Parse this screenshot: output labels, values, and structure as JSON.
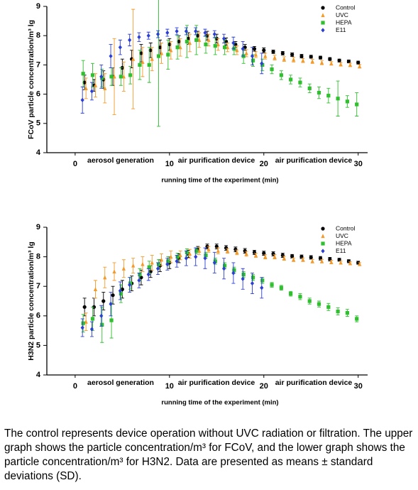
{
  "chart_data": [
    {
      "type": "scatter",
      "y_label": "FCoV particle concentration/m³ lg",
      "x_label": "running time of the experiment (min)",
      "annotations": [
        "aerosol generation",
        "air purification device",
        "air purification device"
      ],
      "legend": "upper right",
      "xlim": [
        -3,
        31
      ],
      "ylim": [
        4,
        9
      ],
      "xticks": [
        0,
        10,
        20,
        30
      ],
      "yticks": [
        4,
        5,
        6,
        7,
        8,
        9
      ],
      "x": [
        1,
        2,
        3,
        4,
        5,
        6,
        7,
        8,
        9,
        10,
        11,
        12,
        13,
        14,
        15,
        16,
        17,
        18,
        19,
        20,
        21,
        22,
        23,
        24,
        25,
        26,
        27,
        28,
        29,
        30
      ],
      "series": [
        {
          "name": "Control",
          "color": "#000000",
          "marker": "circle",
          "values": [
            6.4,
            6.3,
            6.5,
            6.6,
            6.9,
            7.2,
            7.4,
            7.5,
            7.6,
            7.7,
            7.8,
            7.9,
            8.0,
            8.0,
            7.9,
            7.8,
            7.7,
            7.6,
            7.55,
            7.5,
            7.45,
            7.4,
            7.35,
            7.3,
            7.28,
            7.25,
            7.2,
            7.15,
            7.12,
            7.08
          ],
          "errors": [
            0.25,
            0.2,
            0.3,
            0.3,
            0.3,
            0.3,
            0.3,
            0.25,
            0.25,
            0.2,
            0.2,
            0.2,
            0.15,
            0.15,
            0.15,
            0.12,
            0.1,
            0.1,
            0.08,
            0.08,
            0.06,
            0.06,
            0.06,
            0.06,
            0.05,
            0.05,
            0.05,
            0.05,
            0.05,
            0.05
          ]
        },
        {
          "name": "UVC",
          "color": "#f39a2b",
          "marker": "triangle",
          "values": [
            6.2,
            6.3,
            6.2,
            6.6,
            6.6,
            7.2,
            7.1,
            7.2,
            7.4,
            7.5,
            7.6,
            7.75,
            7.85,
            7.85,
            7.7,
            7.6,
            7.5,
            7.4,
            7.35,
            7.3,
            7.25,
            7.2,
            7.18,
            7.15,
            7.12,
            7.08,
            7.05,
            7.02,
            7.0,
            6.95
          ],
          "errors": [
            0.35,
            0.4,
            0.5,
            1.3,
            0.5,
            1.7,
            0.5,
            0.4,
            0.35,
            0.3,
            0.3,
            0.3,
            0.25,
            0.2,
            0.2,
            0.15,
            0.15,
            0.12,
            0.1,
            0.1,
            0.08,
            0.08,
            0.08,
            0.07,
            0.07,
            0.07,
            0.06,
            0.06,
            0.06,
            0.06
          ]
        },
        {
          "name": "HEPA",
          "color": "#2fbf2f",
          "marker": "square",
          "values": [
            6.7,
            6.65,
            6.55,
            6.6,
            6.6,
            6.65,
            7.0,
            7.0,
            7.3,
            7.35,
            7.6,
            7.8,
            7.85,
            7.7,
            7.65,
            7.6,
            7.55,
            7.3,
            7.15,
            7.0,
            6.85,
            6.65,
            6.5,
            6.4,
            6.2,
            6.05,
            5.95,
            5.85,
            5.75,
            5.65
          ],
          "errors": [
            0.45,
            0.4,
            0.3,
            0.3,
            0.3,
            0.3,
            0.5,
            0.6,
            2.4,
            0.5,
            0.4,
            0.55,
            0.5,
            0.3,
            0.3,
            0.25,
            0.2,
            0.25,
            0.2,
            0.2,
            0.15,
            0.15,
            0.15,
            0.15,
            0.15,
            0.2,
            0.25,
            0.6,
            0.2,
            0.4
          ]
        },
        {
          "name": "E11",
          "color": "#2b3fd4",
          "marker": "diamond",
          "values": [
            5.8,
            6.1,
            6.6,
            7.3,
            7.6,
            7.85,
            7.95,
            8.0,
            8.05,
            8.1,
            8.15,
            8.15,
            8.15,
            8.1,
            8.05,
            7.9,
            7.75,
            7.55,
            7.3,
            7.05,
            null,
            null,
            null,
            null,
            null,
            null,
            null,
            null,
            null,
            null
          ],
          "errors": [
            0.45,
            0.3,
            0.4,
            0.4,
            0.25,
            0.2,
            0.15,
            0.12,
            0.12,
            0.12,
            0.12,
            0.12,
            0.12,
            0.12,
            0.12,
            0.15,
            0.2,
            0.25,
            0.3,
            0.35,
            null,
            null,
            null,
            null,
            null,
            null,
            null,
            null,
            null,
            null
          ]
        }
      ]
    },
    {
      "type": "scatter",
      "y_label": "H3N2 particle concentration/m³ lg",
      "x_label": "running time of the experiment (min)",
      "annotations": [
        "aerosol generation",
        "air purification device",
        "air purification device"
      ],
      "legend": "upper right",
      "xlim": [
        -3,
        31
      ],
      "ylim": [
        4,
        9
      ],
      "xticks": [
        0,
        10,
        20,
        30
      ],
      "yticks": [
        4,
        5,
        6,
        7,
        8,
        9
      ],
      "x": [
        1,
        2,
        3,
        4,
        5,
        6,
        7,
        8,
        9,
        10,
        11,
        12,
        13,
        14,
        15,
        16,
        17,
        18,
        19,
        20,
        21,
        22,
        23,
        24,
        25,
        26,
        27,
        28,
        29,
        30
      ],
      "series": [
        {
          "name": "Control",
          "color": "#000000",
          "marker": "circle",
          "values": [
            6.3,
            6.3,
            6.5,
            6.7,
            6.9,
            7.1,
            7.3,
            7.5,
            7.7,
            7.8,
            7.95,
            8.1,
            8.25,
            8.35,
            8.35,
            8.3,
            8.25,
            8.2,
            8.15,
            8.12,
            8.1,
            8.05,
            8.02,
            8.0,
            7.98,
            7.95,
            7.92,
            7.9,
            7.85,
            7.8
          ],
          "errors": [
            0.3,
            0.3,
            0.3,
            0.3,
            0.3,
            0.25,
            0.25,
            0.2,
            0.2,
            0.2,
            0.15,
            0.12,
            0.1,
            0.08,
            0.08,
            0.08,
            0.08,
            0.08,
            0.07,
            0.07,
            0.07,
            0.07,
            0.06,
            0.06,
            0.06,
            0.06,
            0.06,
            0.05,
            0.05,
            0.05
          ]
        },
        {
          "name": "UVC",
          "color": "#f39a2b",
          "marker": "triangle",
          "values": [
            5.8,
            6.9,
            7.3,
            7.5,
            7.6,
            7.7,
            7.75,
            7.8,
            7.9,
            8.0,
            8.05,
            8.1,
            8.2,
            8.25,
            8.2,
            8.2,
            8.15,
            8.1,
            8.05,
            8.0,
            8.0,
            7.95,
            7.9,
            7.9,
            7.85,
            7.85,
            7.82,
            7.8,
            7.78,
            7.75
          ],
          "errors": [
            0.3,
            0.3,
            0.35,
            0.3,
            0.3,
            0.25,
            0.25,
            0.25,
            0.2,
            0.2,
            0.15,
            0.15,
            0.12,
            0.1,
            0.1,
            0.08,
            0.08,
            0.08,
            0.07,
            0.07,
            0.07,
            0.07,
            0.06,
            0.06,
            0.06,
            0.06,
            0.06,
            0.05,
            0.05,
            0.05
          ]
        },
        {
          "name": "HEPA",
          "color": "#2fbf2f",
          "marker": "square",
          "values": [
            5.75,
            5.9,
            5.7,
            5.85,
            6.75,
            7.1,
            7.4,
            7.65,
            7.75,
            7.85,
            8.0,
            8.15,
            8.2,
            8.05,
            7.85,
            7.7,
            7.55,
            7.4,
            7.3,
            7.2,
            7.05,
            6.95,
            6.75,
            6.65,
            6.5,
            6.4,
            6.3,
            6.15,
            6.1,
            5.9
          ],
          "errors": [
            0.3,
            0.4,
            0.6,
            0.6,
            0.3,
            0.2,
            0.2,
            0.2,
            0.15,
            0.15,
            0.12,
            0.12,
            0.1,
            0.1,
            0.1,
            0.1,
            0.1,
            0.1,
            0.1,
            0.1,
            0.08,
            0.08,
            0.08,
            0.1,
            0.1,
            0.1,
            0.12,
            0.12,
            0.12,
            0.1
          ]
        },
        {
          "name": "E11",
          "color": "#2b3fd4",
          "marker": "diamond",
          "values": [
            5.6,
            5.55,
            6.0,
            6.4,
            6.85,
            7.05,
            7.2,
            7.4,
            7.6,
            7.75,
            7.85,
            7.95,
            8.0,
            7.95,
            7.8,
            7.6,
            7.45,
            7.25,
            7.1,
            6.95,
            null,
            null,
            null,
            null,
            null,
            null,
            null,
            null,
            null,
            null
          ],
          "errors": [
            0.3,
            0.25,
            0.35,
            0.4,
            0.3,
            0.25,
            0.25,
            0.2,
            0.2,
            0.2,
            0.2,
            0.25,
            0.3,
            0.35,
            0.35,
            0.35,
            0.35,
            0.35,
            0.35,
            0.35,
            null,
            null,
            null,
            null,
            null,
            null,
            null,
            null,
            null,
            null
          ]
        }
      ]
    }
  ],
  "caption": "The control represents device operation without UVC radiation or filtration. The upper graph shows the particle concentration/m³ for FCoV, and the lower graph shows the particle concentration/m³ for H3N2. Data are presented as means ± standard deviations (SD)."
}
